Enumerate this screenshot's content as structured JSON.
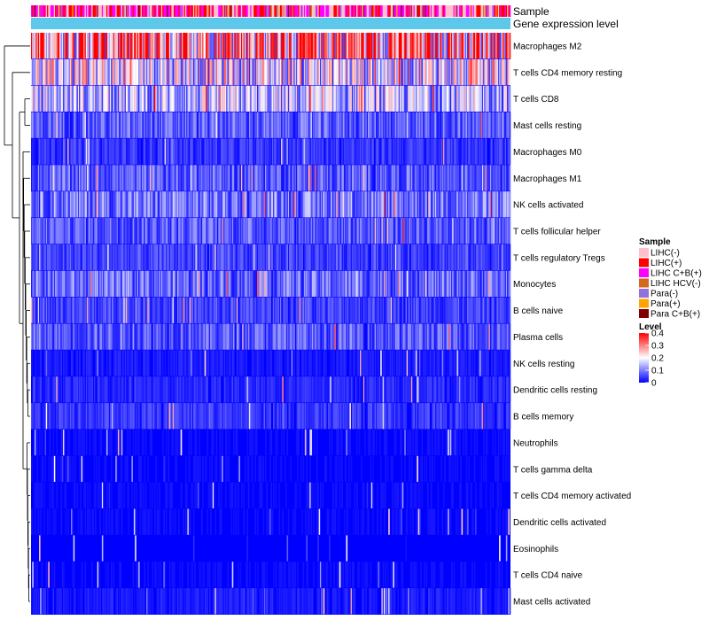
{
  "chart_data": {
    "type": "heatmap",
    "title": "",
    "annotation_tracks": [
      {
        "name": "Sample",
        "label": "Sample"
      },
      {
        "name": "gene-expression-level",
        "label": "Gene expression level"
      }
    ],
    "rows": [
      {
        "label": "Macrophages M2",
        "mean": 0.3
      },
      {
        "label": "T cells CD4 memory resting",
        "mean": 0.18
      },
      {
        "label": "T cells CD8",
        "mean": 0.14
      },
      {
        "label": "Mast cells resting",
        "mean": 0.07
      },
      {
        "label": "Macrophages M0",
        "mean": 0.04
      },
      {
        "label": "Macrophages M1",
        "mean": 0.07
      },
      {
        "label": "NK cells activated",
        "mean": 0.09
      },
      {
        "label": "T cells follicular helper",
        "mean": 0.07
      },
      {
        "label": "T cells regulatory  Tregs",
        "mean": 0.05
      },
      {
        "label": "Monocytes",
        "mean": 0.08
      },
      {
        "label": "B cells naive",
        "mean": 0.05
      },
      {
        "label": "Plasma cells",
        "mean": 0.07
      },
      {
        "label": "NK cells resting",
        "mean": 0.02
      },
      {
        "label": "Dendritic cells resting",
        "mean": 0.03
      },
      {
        "label": "B cells memory",
        "mean": 0.04
      },
      {
        "label": "Neutrophils",
        "mean": 0.01
      },
      {
        "label": "T cells gamma delta",
        "mean": 0.01
      },
      {
        "label": "T cells CD4 memory activated",
        "mean": 0.01
      },
      {
        "label": "Dendritic cells activated",
        "mean": 0.01
      },
      {
        "label": "Eosinophils",
        "mean": 0.005
      },
      {
        "label": "T cells CD4 naive",
        "mean": 0.01
      },
      {
        "label": "Mast cells activated",
        "mean": 0.02
      }
    ],
    "n_samples": 420,
    "value_range": [
      0,
      0.4
    ],
    "color_scale": {
      "low": "#0000ff",
      "mid": "#ffffff",
      "high": "#ff0000"
    },
    "legend": {
      "placement": "right",
      "sample_title": "Sample",
      "sample_entries": [
        {
          "label": "LIHC(-)",
          "color": "#ffc0cb"
        },
        {
          "label": "LIHC(+)",
          "color": "#ff0000"
        },
        {
          "label": "LIHC C+B(+)",
          "color": "#ff00ff"
        },
        {
          "label": "LIHC HCV(-)",
          "color": "#d2691e"
        },
        {
          "label": "Para(-)",
          "color": "#9370db"
        },
        {
          "label": "Para(+)",
          "color": "#ffa500"
        },
        {
          "label": "Para C+B(+)",
          "color": "#800000"
        }
      ],
      "level_title": "Level",
      "level_ticks": [
        "0.4",
        "0.3",
        "0.2",
        "0.1",
        "0"
      ],
      "level_tick_values": [
        0.4,
        0.3,
        0.2,
        0.1,
        0
      ]
    },
    "expression_bar_color": "#5ec8ea",
    "dendrogram_color": "#000000"
  }
}
